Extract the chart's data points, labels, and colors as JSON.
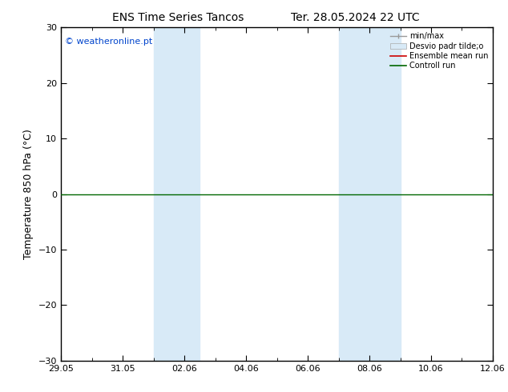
{
  "title_left": "ENS Time Series Tancos",
  "title_right": "Ter. 28.05.2024 22 UTC",
  "ylabel": "Temperature 850 hPa (°C)",
  "ylim": [
    -30,
    30
  ],
  "yticks": [
    -30,
    -20,
    -10,
    0,
    10,
    20,
    30
  ],
  "xlim": [
    0,
    14
  ],
  "xtick_labels": [
    "29.05",
    "31.05",
    "02.06",
    "04.06",
    "06.06",
    "08.06",
    "10.06",
    "12.06"
  ],
  "xtick_positions": [
    0,
    2,
    4,
    6,
    8,
    10,
    12,
    14
  ],
  "background_color": "#ffffff",
  "plot_bg_color": "#ffffff",
  "copyright_text": "© weatheronline.pt",
  "legend_labels": [
    "min/max",
    "Desvio padr tilde;o",
    "Ensemble mean run",
    "Controll run"
  ],
  "shaded_bands": [
    {
      "xstart": 3.0,
      "xend": 4.5
    },
    {
      "xstart": 9.0,
      "xend": 11.0
    }
  ],
  "shaded_color": "#d8eaf7",
  "zero_line_color": "#006600",
  "spine_color": "#000000",
  "title_fontsize": 10,
  "axis_label_fontsize": 9,
  "tick_fontsize": 8,
  "copyright_fontsize": 8,
  "figsize": [
    6.34,
    4.9
  ],
  "dpi": 100
}
